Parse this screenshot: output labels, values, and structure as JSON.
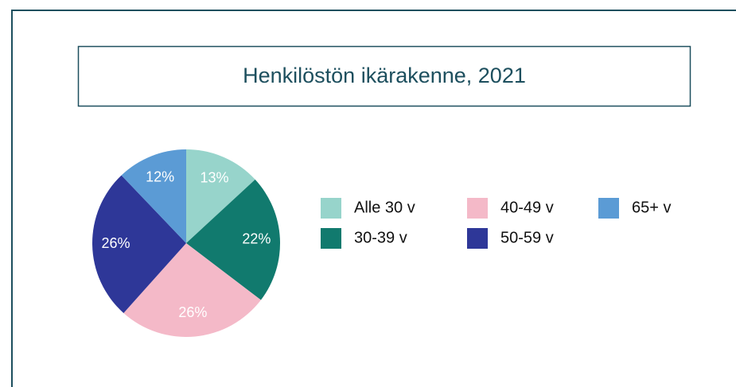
{
  "chart_data": {
    "type": "pie",
    "title": "Henkilöstön ikärakenne, 2021",
    "categories": [
      "Alle 30 v",
      "30-39 v",
      "40-49 v",
      "50-59 v",
      "65+ v"
    ],
    "values": [
      13,
      22,
      26,
      26,
      12
    ],
    "value_labels": [
      "13%",
      "22%",
      "26%",
      "26%",
      "12%"
    ],
    "colors": [
      "#97d4cb",
      "#117a6e",
      "#f4b9c8",
      "#2e3798",
      "#5b9bd5"
    ],
    "legend": "right"
  }
}
